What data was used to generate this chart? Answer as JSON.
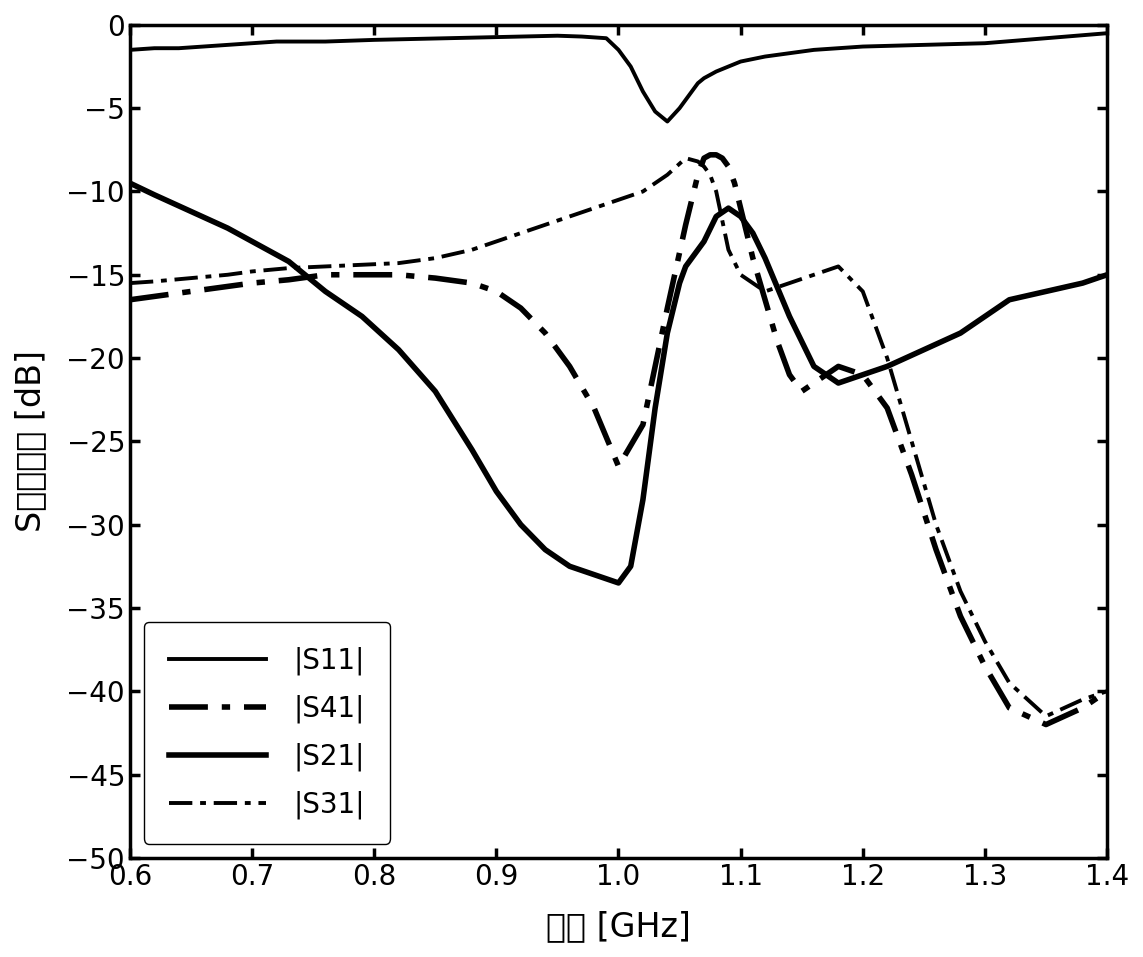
{
  "title": "",
  "xlabel": "频率 [GHz]",
  "ylabel": "S参数响应 [dB]",
  "xlim": [
    0.6,
    1.4
  ],
  "ylim": [
    -50,
    0
  ],
  "xticks": [
    0.6,
    0.7,
    0.8,
    0.9,
    1.0,
    1.1,
    1.2,
    1.3,
    1.4
  ],
  "yticks": [
    0,
    -5,
    -10,
    -15,
    -20,
    -25,
    -30,
    -35,
    -40,
    -45,
    -50
  ],
  "background_color": "#ffffff",
  "line_color": "#000000",
  "legend_labels": [
    "|S11|",
    "|S41|",
    "|S21|",
    "|S31|"
  ],
  "S11": {
    "x": [
      0.6,
      0.62,
      0.64,
      0.66,
      0.68,
      0.7,
      0.72,
      0.74,
      0.76,
      0.78,
      0.8,
      0.83,
      0.86,
      0.89,
      0.92,
      0.95,
      0.97,
      0.99,
      1.0,
      1.01,
      1.02,
      1.03,
      1.04,
      1.05,
      1.055,
      1.06,
      1.065,
      1.07,
      1.08,
      1.09,
      1.1,
      1.12,
      1.14,
      1.16,
      1.18,
      1.2,
      1.25,
      1.3,
      1.35,
      1.4
    ],
    "y": [
      -1.5,
      -1.4,
      -1.4,
      -1.3,
      -1.2,
      -1.1,
      -1.0,
      -1.0,
      -1.0,
      -0.95,
      -0.9,
      -0.85,
      -0.8,
      -0.75,
      -0.7,
      -0.65,
      -0.7,
      -0.8,
      -1.5,
      -2.5,
      -4.0,
      -5.2,
      -5.8,
      -5.0,
      -4.5,
      -4.0,
      -3.5,
      -3.2,
      -2.8,
      -2.5,
      -2.2,
      -1.9,
      -1.7,
      -1.5,
      -1.4,
      -1.3,
      -1.2,
      -1.1,
      -0.8,
      -0.5
    ]
  },
  "S41": {
    "x": [
      0.6,
      0.62,
      0.65,
      0.68,
      0.7,
      0.73,
      0.76,
      0.79,
      0.82,
      0.85,
      0.88,
      0.9,
      0.92,
      0.94,
      0.96,
      0.98,
      1.0,
      1.02,
      1.04,
      1.055,
      1.065,
      1.07,
      1.075,
      1.08,
      1.085,
      1.09,
      1.095,
      1.1,
      1.105,
      1.11,
      1.12,
      1.13,
      1.14,
      1.15,
      1.16,
      1.18,
      1.2,
      1.22,
      1.24,
      1.26,
      1.28,
      1.3,
      1.32,
      1.35,
      1.38,
      1.4
    ],
    "y": [
      -16.5,
      -16.3,
      -16.0,
      -15.7,
      -15.5,
      -15.3,
      -15.0,
      -15.0,
      -15.0,
      -15.2,
      -15.5,
      -16.0,
      -17.0,
      -18.5,
      -20.5,
      -23.0,
      -26.5,
      -24.0,
      -17.0,
      -12.0,
      -9.0,
      -8.0,
      -7.8,
      -7.8,
      -8.0,
      -8.5,
      -9.5,
      -11.0,
      -12.5,
      -14.0,
      -16.5,
      -19.0,
      -21.0,
      -22.0,
      -21.5,
      -20.5,
      -21.0,
      -23.0,
      -27.0,
      -31.5,
      -35.5,
      -38.5,
      -41.0,
      -42.0,
      -41.0,
      -40.0
    ]
  },
  "S21": {
    "x": [
      0.6,
      0.62,
      0.65,
      0.68,
      0.7,
      0.73,
      0.76,
      0.79,
      0.82,
      0.85,
      0.88,
      0.9,
      0.92,
      0.94,
      0.96,
      0.98,
      1.0,
      1.01,
      1.02,
      1.03,
      1.04,
      1.05,
      1.055,
      1.06,
      1.065,
      1.07,
      1.08,
      1.09,
      1.1,
      1.11,
      1.12,
      1.14,
      1.16,
      1.18,
      1.2,
      1.22,
      1.25,
      1.28,
      1.3,
      1.32,
      1.35,
      1.38,
      1.4
    ],
    "y": [
      -9.5,
      -10.2,
      -11.2,
      -12.2,
      -13.0,
      -14.2,
      -16.0,
      -17.5,
      -19.5,
      -22.0,
      -25.5,
      -28.0,
      -30.0,
      -31.5,
      -32.5,
      -33.0,
      -33.5,
      -32.5,
      -28.5,
      -23.0,
      -18.5,
      -15.5,
      -14.5,
      -14.0,
      -13.5,
      -13.0,
      -11.5,
      -11.0,
      -11.5,
      -12.5,
      -14.0,
      -17.5,
      -20.5,
      -21.5,
      -21.0,
      -20.5,
      -19.5,
      -18.5,
      -17.5,
      -16.5,
      -16.0,
      -15.5,
      -15.0
    ]
  },
  "S31": {
    "x": [
      0.6,
      0.62,
      0.65,
      0.68,
      0.7,
      0.73,
      0.76,
      0.79,
      0.82,
      0.85,
      0.88,
      0.9,
      0.92,
      0.94,
      0.96,
      0.98,
      1.0,
      1.02,
      1.04,
      1.055,
      1.065,
      1.07,
      1.075,
      1.08,
      1.09,
      1.1,
      1.11,
      1.12,
      1.14,
      1.16,
      1.18,
      1.2,
      1.22,
      1.24,
      1.26,
      1.28,
      1.3,
      1.32,
      1.35,
      1.38,
      1.4
    ],
    "y": [
      -15.5,
      -15.4,
      -15.2,
      -15.0,
      -14.8,
      -14.6,
      -14.5,
      -14.4,
      -14.3,
      -14.0,
      -13.5,
      -13.0,
      -12.5,
      -12.0,
      -11.5,
      -11.0,
      -10.5,
      -10.0,
      -9.0,
      -8.0,
      -8.2,
      -8.5,
      -9.0,
      -10.0,
      -13.5,
      -15.0,
      -15.5,
      -16.0,
      -15.5,
      -15.0,
      -14.5,
      -16.0,
      -20.0,
      -25.0,
      -30.0,
      -34.0,
      -37.0,
      -39.5,
      -41.5,
      -40.5,
      -40.0
    ]
  }
}
